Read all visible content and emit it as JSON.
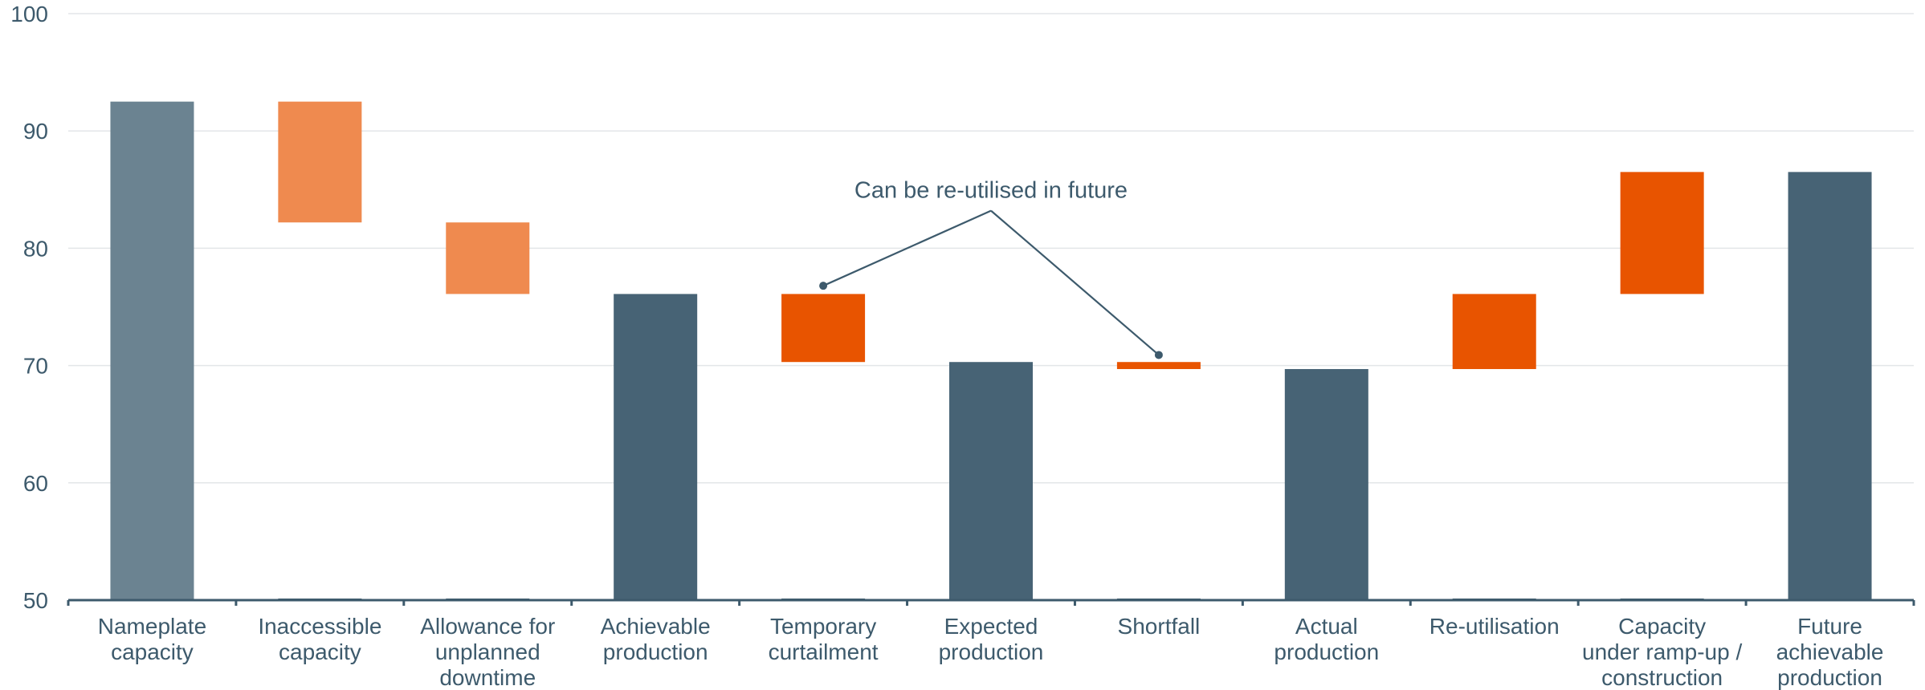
{
  "chart_data": {
    "type": "bar",
    "subtype": "waterfall",
    "title": "",
    "xlabel": "",
    "ylabel": "",
    "ylim": [
      50,
      100
    ],
    "yticks": [
      50,
      60,
      70,
      80,
      90,
      100
    ],
    "grid": true,
    "legend": "none",
    "bars": [
      {
        "label": "Nameplate capacity",
        "lines": [
          "Nameplate",
          "capacity"
        ],
        "base": 50,
        "top": 92.5,
        "color": "#6b8391"
      },
      {
        "label": "Inaccessible capacity",
        "lines": [
          "Inaccessible",
          "capacity"
        ],
        "base": 82.2,
        "top": 92.5,
        "color": "#ef8a4f"
      },
      {
        "label": "Allowance for unplanned downtime",
        "lines": [
          "Allowance for",
          "unplanned",
          "downtime"
        ],
        "base": 76.1,
        "top": 82.2,
        "color": "#ef8a4f"
      },
      {
        "label": "Achievable production",
        "lines": [
          "Achievable",
          "production"
        ],
        "base": 50,
        "top": 76.1,
        "color": "#476375"
      },
      {
        "label": "Temporary curtailment",
        "lines": [
          "Temporary",
          "curtailment"
        ],
        "base": 70.3,
        "top": 76.1,
        "color": "#e85400"
      },
      {
        "label": "Expected production",
        "lines": [
          "Expected",
          "production"
        ],
        "base": 50,
        "top": 70.3,
        "color": "#476375"
      },
      {
        "label": "Shortfall",
        "lines": [
          "Shortfall"
        ],
        "base": 69.7,
        "top": 70.3,
        "color": "#e85400"
      },
      {
        "label": "Actual production",
        "lines": [
          "Actual",
          "production"
        ],
        "base": 50,
        "top": 69.7,
        "color": "#476375"
      },
      {
        "label": "Re-utilisation",
        "lines": [
          "Re-utilisation"
        ],
        "base": 69.7,
        "top": 76.1,
        "color": "#e85400"
      },
      {
        "label": "Capacity under ramp-up / construction",
        "lines": [
          "Capacity",
          "under ramp-up /",
          "construction"
        ],
        "base": 76.1,
        "top": 86.5,
        "color": "#e85400"
      },
      {
        "label": "Future achievable production",
        "lines": [
          "Future",
          "achievable",
          "production"
        ],
        "base": 50,
        "top": 86.5,
        "color": "#476375"
      }
    ],
    "annotations": [
      {
        "text": "Can be re-utilised in future",
        "x_category": 5.5,
        "y": 83.2,
        "targets": [
          {
            "category": 4,
            "y": 76.8
          },
          {
            "category": 6,
            "y": 70.9
          }
        ]
      }
    ]
  }
}
